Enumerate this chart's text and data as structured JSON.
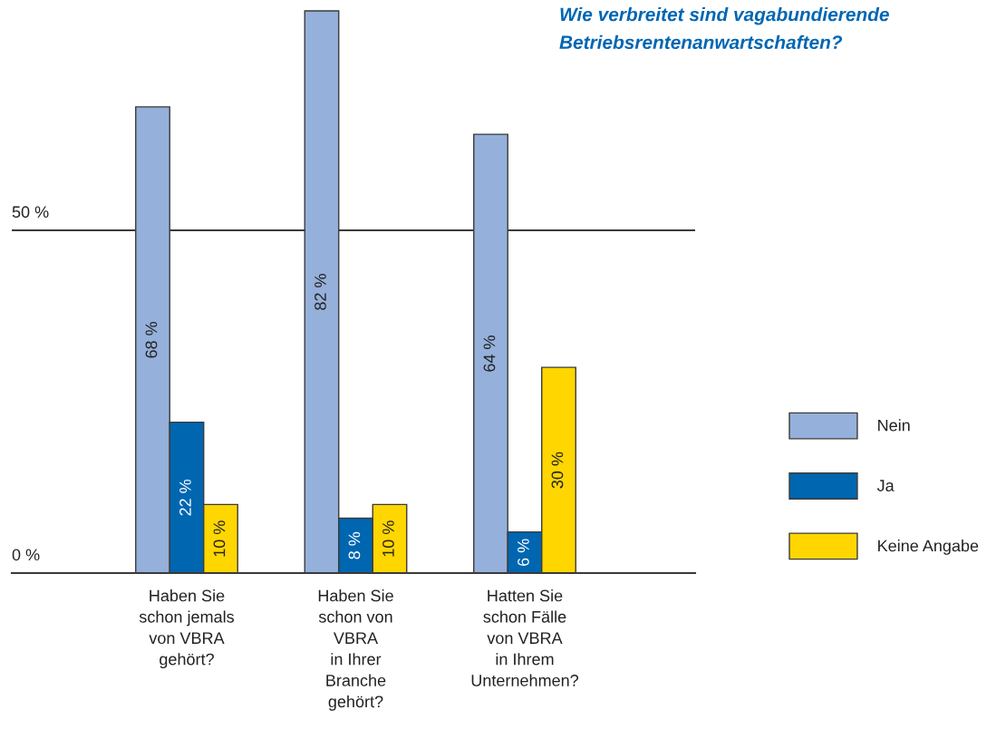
{
  "chart_data": {
    "type": "bar",
    "title": "Wie verbreitet sind vagabundierende\nBetriebsrentenanwartschaften?",
    "categories": [
      "Haben Sie\nschon jemals\nvon VBRA\ngehört?",
      "Haben Sie\nschon von\nVBRA\nin Ihrer\nBranche\ngehört?",
      "Hatten Sie\nschon Fälle\nvon VBRA\nin Ihrem\nUnternehmen?"
    ],
    "series": [
      {
        "name": "Nein",
        "color": "#95b0da",
        "values": [
          68,
          82,
          64
        ],
        "value_labels": [
          "68 %",
          "82 %",
          "64 %"
        ]
      },
      {
        "name": "Ja",
        "color": "#0066b0",
        "values": [
          22,
          8,
          6
        ],
        "value_labels": [
          "22 %",
          "8 %",
          "6 %"
        ]
      },
      {
        "name": "Keine Angabe",
        "color": "#ffd600",
        "values": [
          10,
          10,
          30
        ],
        "value_labels": [
          "10 %",
          "10 %",
          "30 %"
        ]
      }
    ],
    "ylim": [
      0,
      82
    ],
    "yticks": [
      {
        "value": 0,
        "label": "0 %"
      },
      {
        "value": 50,
        "label": "50 %"
      }
    ],
    "grid": "y",
    "legend": "right"
  }
}
